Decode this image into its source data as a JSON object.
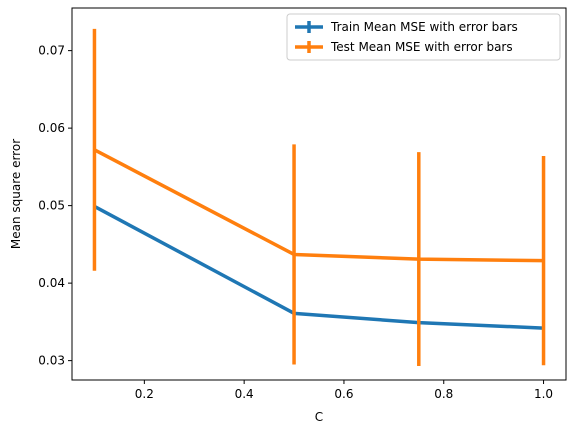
{
  "chart_data": {
    "type": "line",
    "xlabel": "C",
    "ylabel": "Mean square error",
    "xlim": [
      0.055,
      1.045
    ],
    "ylim": [
      0.0275,
      0.0755
    ],
    "xticks": [
      0.2,
      0.4,
      0.6,
      0.8,
      1.0
    ],
    "xtick_labels": [
      "0.2",
      "0.4",
      "0.6",
      "0.8",
      "1.0"
    ],
    "yticks": [
      0.03,
      0.04,
      0.05,
      0.06,
      0.07
    ],
    "ytick_labels": [
      "0.03",
      "0.04",
      "0.05",
      "0.06",
      "0.07"
    ],
    "grid": false,
    "legend_position": "top-right",
    "x": [
      0.1,
      0.5,
      0.75,
      1.0
    ],
    "series": [
      {
        "name": "Train Mean MSE with error bars",
        "color": "#1f77b4",
        "values": [
          0.0499,
          0.0361,
          0.0349,
          0.0342
        ],
        "errors": [
          0.0,
          0.0,
          0.0,
          0.0
        ]
      },
      {
        "name": "Test Mean MSE with error bars",
        "color": "#ff7f0e",
        "values": [
          0.0572,
          0.0437,
          0.0431,
          0.0429
        ],
        "errors": [
          0.0156,
          0.0142,
          0.0138,
          0.0135
        ]
      }
    ]
  }
}
